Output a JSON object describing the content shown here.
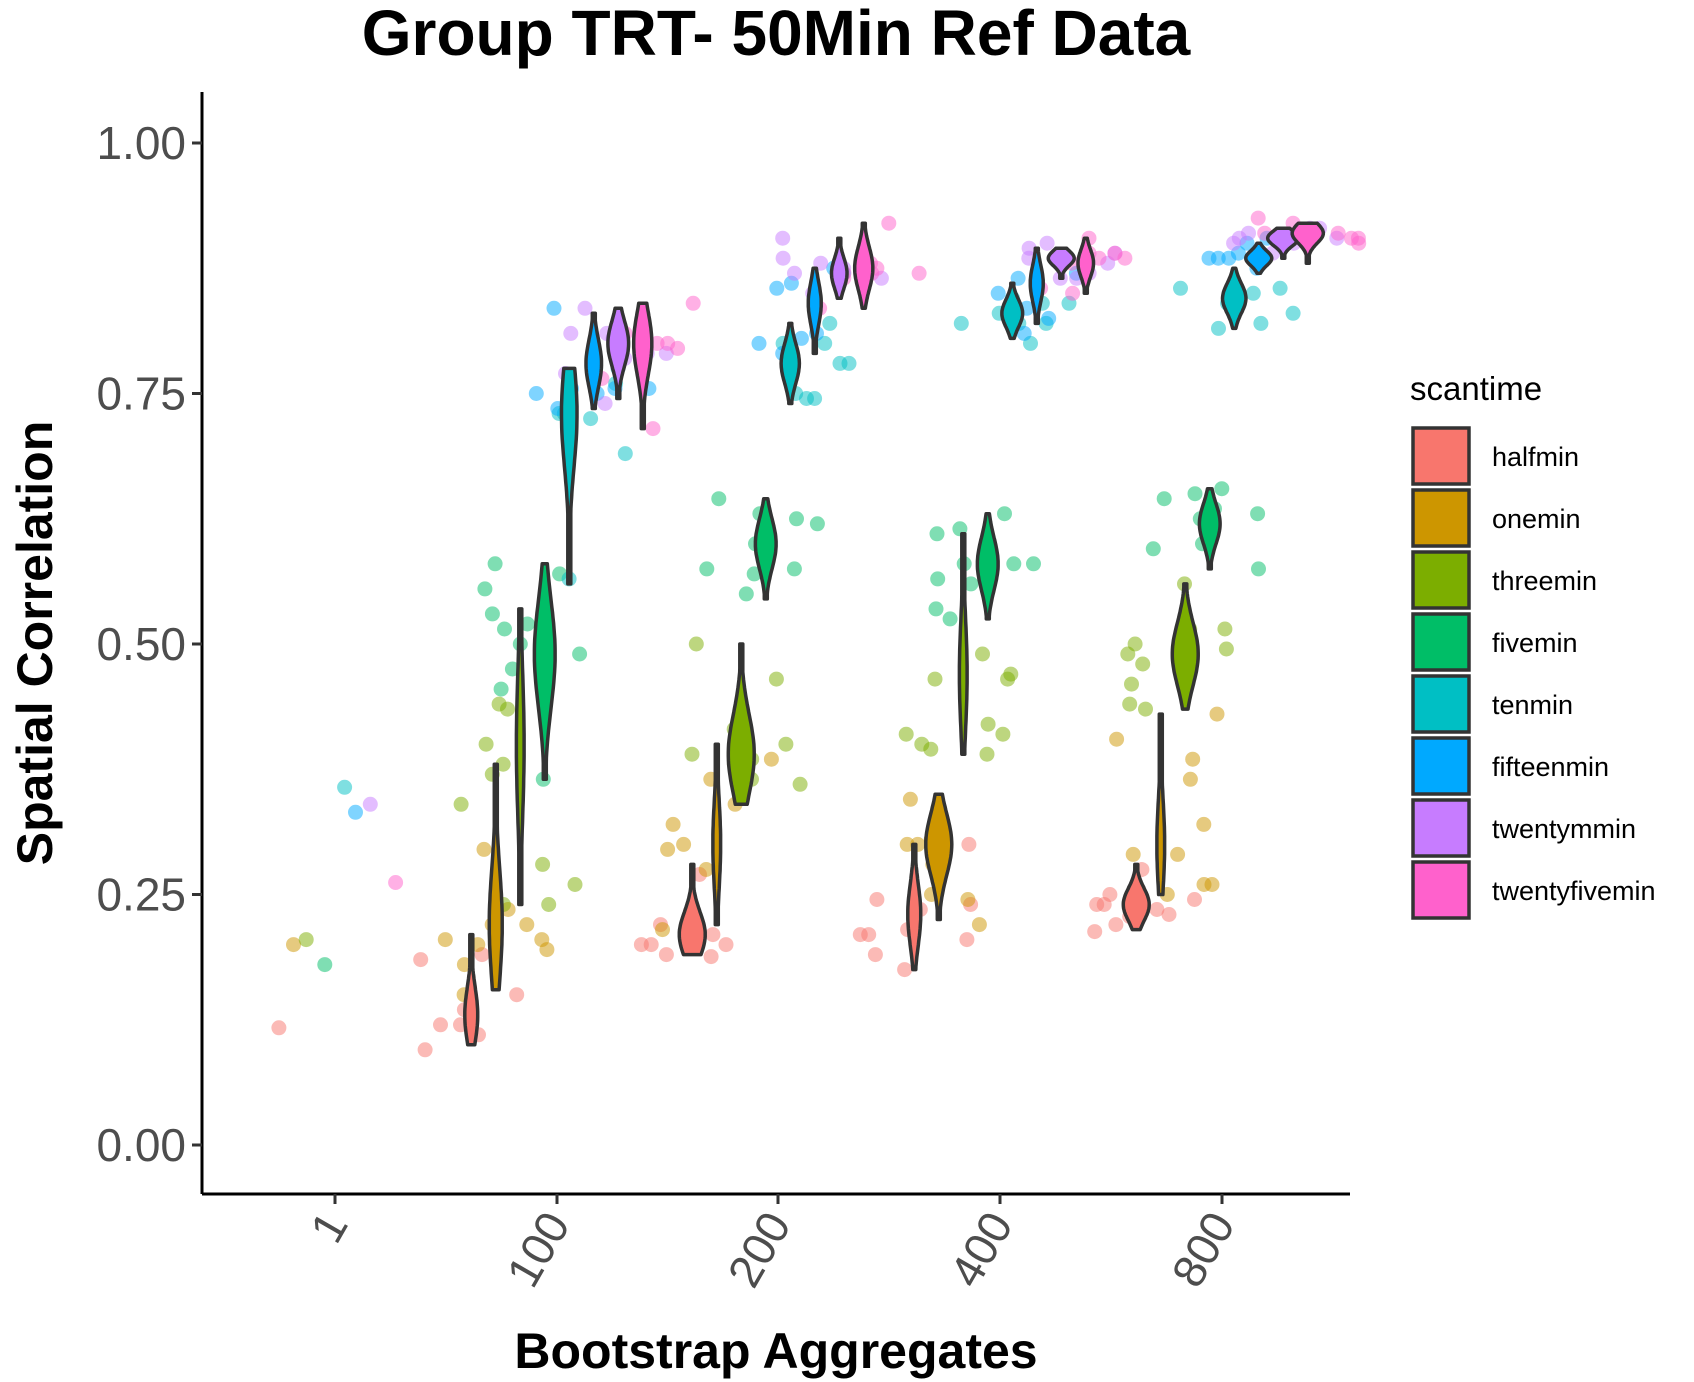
{
  "chart_data": {
    "type": "scatter",
    "subtype": "violin-with-jittered-points",
    "title": "Group TRT- 50Min Ref Data",
    "xlabel": "Bootstrap Aggregates",
    "ylabel": "Spatial Correlation",
    "categories": [
      "1",
      "100",
      "200",
      "400",
      "800"
    ],
    "ylim": [
      -0.05,
      1.05
    ],
    "yticks": [
      0.0,
      0.25,
      0.5,
      0.75,
      1.0
    ],
    "ytick_labels": [
      "0.00",
      "0.25",
      "0.50",
      "0.75",
      "1.00"
    ],
    "grid": false,
    "legend": {
      "title": "scantime",
      "position": "right"
    },
    "series": [
      {
        "name": "halfmin",
        "color": "#F8766D",
        "violins": {
          "100": {
            "min": 0.1,
            "max": 0.21,
            "peak": 0.13,
            "width": 0.5
          },
          "200": {
            "min": 0.19,
            "max": 0.28,
            "peak": 0.21,
            "width": 1.0
          },
          "400": {
            "min": 0.175,
            "max": 0.3,
            "peak": 0.23,
            "width": 0.5
          },
          "800": {
            "min": 0.215,
            "max": 0.28,
            "peak": 0.24,
            "width": 1.0
          }
        },
        "points": {
          "1": [
            0.117
          ],
          "100": [
            0.11,
            0.095,
            0.12,
            0.135,
            0.125,
            0.185,
            0.15,
            0.19,
            0.12
          ],
          "200": [
            0.19,
            0.2,
            0.188,
            0.2,
            0.205,
            0.22,
            0.21,
            0.2,
            0.27,
            0.22
          ],
          "400": [
            0.19,
            0.21,
            0.205,
            0.24,
            0.21,
            0.215,
            0.3,
            0.245,
            0.175,
            0.235
          ],
          "800": [
            0.235,
            0.25,
            0.24,
            0.245,
            0.228,
            0.24,
            0.275,
            0.22,
            0.213,
            0.23
          ]
        }
      },
      {
        "name": "onemin",
        "color": "#CD9600",
        "violins": {
          "100": {
            "min": 0.155,
            "max": 0.38,
            "peak": 0.22,
            "width": 0.5
          },
          "200": {
            "min": 0.22,
            "max": 0.4,
            "peak": 0.3,
            "width": 0.3
          },
          "400": {
            "min": 0.225,
            "max": 0.35,
            "peak": 0.3,
            "width": 1.0
          },
          "800": {
            "min": 0.25,
            "max": 0.43,
            "peak": 0.3,
            "width": 0.3
          }
        },
        "points": {
          "1": [
            0.2
          ],
          "100": [
            0.2,
            0.205,
            0.195,
            0.18,
            0.205,
            0.22,
            0.15,
            0.235,
            0.295,
            0.22
          ],
          "200": [
            0.34,
            0.32,
            0.3,
            0.365,
            0.295,
            0.215,
            0.275,
            0.37,
            0.38,
            0.385
          ],
          "400": [
            0.3,
            0.305,
            0.29,
            0.305,
            0.22,
            0.28,
            0.25,
            0.345,
            0.3,
            0.245
          ],
          "800": [
            0.405,
            0.29,
            0.385,
            0.32,
            0.43,
            0.26,
            0.26,
            0.365,
            0.29,
            0.25
          ]
        }
      },
      {
        "name": "threemin",
        "color": "#7CAE00",
        "violins": {
          "100": {
            "min": 0.24,
            "max": 0.535,
            "peak": 0.4,
            "width": 0.3
          },
          "200": {
            "min": 0.34,
            "max": 0.5,
            "peak": 0.39,
            "width": 1.0
          },
          "400": {
            "min": 0.39,
            "max": 0.61,
            "peak": 0.47,
            "width": 0.3
          },
          "800": {
            "min": 0.435,
            "max": 0.56,
            "peak": 0.49,
            "width": 1.0
          }
        },
        "points": {
          "1": [
            0.205
          ],
          "100": [
            0.44,
            0.38,
            0.4,
            0.435,
            0.28,
            0.24,
            0.37,
            0.26,
            0.34,
            0.24
          ],
          "200": [
            0.365,
            0.415,
            0.39,
            0.36,
            0.4,
            0.4,
            0.385,
            0.42,
            0.5,
            0.465
          ],
          "400": [
            0.47,
            0.465,
            0.41,
            0.4,
            0.42,
            0.39,
            0.49,
            0.465,
            0.395,
            0.41
          ],
          "800": [
            0.435,
            0.44,
            0.5,
            0.49,
            0.515,
            0.515,
            0.495,
            0.48,
            0.56,
            0.46
          ]
        }
      },
      {
        "name": "fivemin",
        "color": "#00BE67",
        "violins": {
          "100": {
            "min": 0.365,
            "max": 0.58,
            "peak": 0.49,
            "width": 0.8
          },
          "200": {
            "min": 0.545,
            "max": 0.645,
            "peak": 0.6,
            "width": 0.8
          },
          "400": {
            "min": 0.525,
            "max": 0.63,
            "peak": 0.58,
            "width": 0.8
          },
          "800": {
            "min": 0.575,
            "max": 0.655,
            "peak": 0.62,
            "width": 0.8
          }
        },
        "points": {
          "1": [
            0.18
          ],
          "100": [
            0.365,
            0.53,
            0.52,
            0.475,
            0.5,
            0.49,
            0.455,
            0.515,
            0.555,
            0.57,
            0.58
          ],
          "200": [
            0.57,
            0.645,
            0.585,
            0.6,
            0.575,
            0.625,
            0.63,
            0.575,
            0.55,
            0.62
          ],
          "400": [
            0.58,
            0.63,
            0.615,
            0.56,
            0.61,
            0.58,
            0.565,
            0.535,
            0.525,
            0.58
          ],
          "800": [
            0.595,
            0.655,
            0.6,
            0.65,
            0.635,
            0.575,
            0.62,
            0.625,
            0.645,
            0.63
          ]
        }
      },
      {
        "name": "tenmin",
        "color": "#00BFC4",
        "violins": {
          "100": {
            "min": 0.56,
            "max": 0.775,
            "peak": 0.73,
            "width": 0.6
          },
          "200": {
            "min": 0.74,
            "max": 0.82,
            "peak": 0.78,
            "width": 0.7
          },
          "400": {
            "min": 0.805,
            "max": 0.86,
            "peak": 0.83,
            "width": 0.8
          },
          "800": {
            "min": 0.815,
            "max": 0.875,
            "peak": 0.845,
            "width": 0.9
          }
        },
        "points": {
          "1": [
            0.357
          ],
          "100": [
            0.565,
            0.775,
            0.725,
            0.73,
            0.69,
            0.76,
            0.73,
            0.75
          ],
          "200": [
            0.745,
            0.8,
            0.78,
            0.75,
            0.78,
            0.745,
            0.82,
            0.8
          ],
          "400": [
            0.82,
            0.84,
            0.82,
            0.8,
            0.83,
            0.84,
            0.82,
            0.845
          ],
          "800": [
            0.84,
            0.855,
            0.82,
            0.855,
            0.815,
            0.84,
            0.83,
            0.85
          ]
        }
      },
      {
        "name": "fifteenmin",
        "color": "#00A9FF",
        "violins": {
          "100": {
            "min": 0.735,
            "max": 0.83,
            "peak": 0.78,
            "width": 0.6
          },
          "200": {
            "min": 0.79,
            "max": 0.875,
            "peak": 0.84,
            "width": 0.5
          },
          "400": {
            "min": 0.82,
            "max": 0.895,
            "peak": 0.86,
            "width": 0.5
          },
          "800": {
            "min": 0.87,
            "max": 0.9,
            "peak": 0.885,
            "width": 1.0
          }
        },
        "points": {
          "1": [
            0.332
          ],
          "100": [
            0.755,
            0.835,
            0.735,
            0.75,
            0.755,
            0.75,
            0.755
          ],
          "200": [
            0.81,
            0.8,
            0.805,
            0.855,
            0.875,
            0.79,
            0.87,
            0.86
          ],
          "400": [
            0.875,
            0.825,
            0.81,
            0.87,
            0.85,
            0.865,
            0.835,
            0.88
          ],
          "800": [
            0.905,
            0.885,
            0.885,
            0.875,
            0.885,
            0.9,
            0.89,
            0.89
          ]
        }
      },
      {
        "name": "twentymmin",
        "color": "#C77CFF",
        "violins": {
          "100": {
            "min": 0.745,
            "max": 0.835,
            "peak": 0.8,
            "width": 0.8
          },
          "200": {
            "min": 0.845,
            "max": 0.905,
            "peak": 0.87,
            "width": 0.6
          },
          "400": {
            "min": 0.865,
            "max": 0.895,
            "peak": 0.885,
            "width": 1.0
          },
          "800": {
            "min": 0.885,
            "max": 0.915,
            "peak": 0.905,
            "width": 1.2
          }
        },
        "points": {
          "1": [
            0.34
          ],
          "100": [
            0.77,
            0.79,
            0.805,
            0.785,
            0.79,
            0.81,
            0.81,
            0.835,
            0.74
          ],
          "200": [
            0.885,
            0.87,
            0.875,
            0.865,
            0.905,
            0.875,
            0.85,
            0.88
          ],
          "400": [
            0.895,
            0.87,
            0.865,
            0.885,
            0.865,
            0.88,
            0.89,
            0.9
          ],
          "800": [
            0.905,
            0.915,
            0.89,
            0.9,
            0.91,
            0.905,
            0.915,
            0.9
          ]
        }
      },
      {
        "name": "twentyfivemin",
        "color": "#FF61CC",
        "violins": {
          "100": {
            "min": 0.715,
            "max": 0.84,
            "peak": 0.8,
            "width": 0.7
          },
          "200": {
            "min": 0.835,
            "max": 0.92,
            "peak": 0.875,
            "width": 0.7
          },
          "400": {
            "min": 0.85,
            "max": 0.905,
            "peak": 0.88,
            "width": 0.6
          },
          "800": {
            "min": 0.88,
            "max": 0.92,
            "peak": 0.91,
            "width": 1.2
          }
        },
        "points": {
          "1": [
            0.262
          ],
          "100": [
            0.805,
            0.81,
            0.805,
            0.765,
            0.84,
            0.8,
            0.795,
            0.8,
            0.79,
            0.715
          ],
          "200": [
            0.835,
            0.92,
            0.87,
            0.875,
            0.865,
            0.87,
            0.88,
            0.87
          ],
          "400": [
            0.855,
            0.85,
            0.885,
            0.89,
            0.89,
            0.905,
            0.885,
            0.88
          ],
          "800": [
            0.925,
            0.91,
            0.92,
            0.905,
            0.91,
            0.9,
            0.91,
            0.905
          ]
        }
      }
    ]
  }
}
